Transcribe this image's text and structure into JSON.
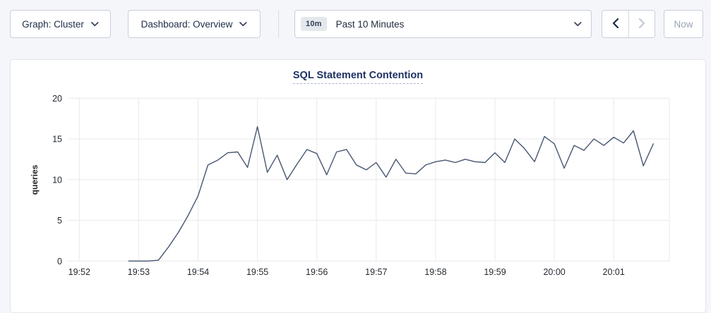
{
  "toolbar": {
    "graph_dropdown": {
      "label": "Graph: Cluster"
    },
    "dashboard_dropdown": {
      "label": "Dashboard: Overview"
    },
    "time_selector": {
      "badge": "10m",
      "label": "Past 10 Minutes"
    },
    "now_button_label": "Now"
  },
  "chart_data": {
    "type": "line",
    "title": "SQL Statement Contention",
    "ylabel": "queries",
    "xlabel": "",
    "ylim": [
      0,
      20
    ],
    "yticks": [
      0,
      5,
      10,
      15,
      20
    ],
    "x_tick_labels": [
      "19:52",
      "19:53",
      "19:54",
      "19:55",
      "19:56",
      "19:57",
      "19:58",
      "19:59",
      "20:00",
      "20:01"
    ],
    "grid": true,
    "legend": false,
    "series": [
      {
        "name": "queries",
        "x_seconds_after_19_52": [
          50,
          60,
          70,
          80,
          90,
          100,
          110,
          120,
          130,
          140,
          150,
          160,
          170,
          180,
          190,
          200,
          210,
          220,
          230,
          240,
          250,
          260,
          270,
          280,
          290,
          300,
          310,
          320,
          330,
          340,
          350,
          360,
          370,
          380,
          390,
          400,
          410,
          420,
          430,
          440,
          450,
          460,
          470,
          480,
          490,
          500,
          510,
          520,
          530,
          540,
          550,
          560,
          570,
          580
        ],
        "values": [
          0,
          0,
          0,
          0.1,
          1.7,
          3.5,
          5.6,
          8,
          11.8,
          12.4,
          13.3,
          13.4,
          11.5,
          16.5,
          10.9,
          13,
          10,
          11.9,
          13.7,
          13.2,
          10.6,
          13.4,
          13.7,
          11.8,
          11.2,
          12.1,
          10.3,
          12.5,
          10.8,
          10.7,
          11.8,
          12.2,
          12.4,
          12.1,
          12.5,
          12.2,
          12.1,
          13.3,
          12.1,
          15,
          13.8,
          12.2,
          15.3,
          14.4,
          11.4,
          14.2,
          13.6,
          15,
          14.2,
          15.2,
          14.5,
          16,
          11.7,
          14.4
        ]
      }
    ]
  },
  "colors": {
    "page_bg": "#f5f6fa",
    "card_bg": "#ffffff",
    "line": "#475672",
    "grid": "#e9e9e9",
    "axis_text": "#24292f",
    "title": "#1e3263"
  }
}
